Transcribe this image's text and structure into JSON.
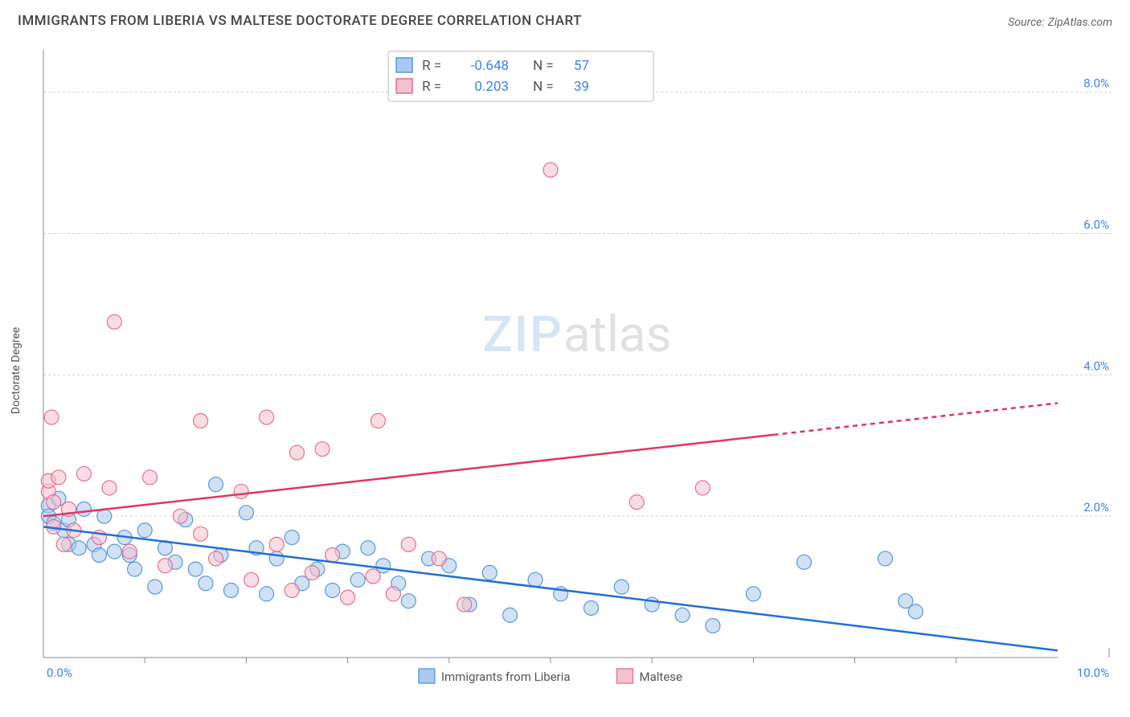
{
  "title": "IMMIGRANTS FROM LIBERIA VS MALTESE DOCTORATE DEGREE CORRELATION CHART",
  "source_label": "Source:",
  "source_value": "ZipAtlas.com",
  "ylabel": "Doctorate Degree",
  "watermark_a": "ZIP",
  "watermark_b": "atlas",
  "chart": {
    "type": "scatter",
    "xlim": [
      0,
      10
    ],
    "ylim": [
      0,
      8.6
    ],
    "ytick_step": 2,
    "ytick_labels": [
      "2.0%",
      "4.0%",
      "6.0%",
      "8.0%"
    ],
    "xticks_major": [
      0,
      10
    ],
    "xtick_labels": [
      "0.0%",
      "10.0%"
    ],
    "xticks_minor": [
      1,
      2,
      3,
      4,
      5,
      6,
      7,
      8,
      9
    ],
    "background_color": "#ffffff",
    "grid_color": "#d0d0d0",
    "axis_color": "#888888",
    "marker_radius": 9,
    "marker_opacity": 0.55,
    "line_width": 2.5,
    "series": [
      {
        "name": "Immigrants from Liberia",
        "color_fill": "#a9c9ef",
        "color_stroke": "#5a97dd",
        "line_color": "#1f6fd4",
        "R": "-0.648",
        "N": "57",
        "trend": {
          "x1": 0,
          "y1": 1.85,
          "x2": 10,
          "y2": 0.1,
          "extrap_from_x": null
        },
        "points": [
          [
            0.05,
            2.15
          ],
          [
            0.05,
            2.0
          ],
          [
            0.1,
            1.9
          ],
          [
            0.15,
            2.25
          ],
          [
            0.2,
            1.8
          ],
          [
            0.25,
            1.6
          ],
          [
            0.25,
            1.95
          ],
          [
            0.35,
            1.55
          ],
          [
            0.4,
            2.1
          ],
          [
            0.5,
            1.6
          ],
          [
            0.55,
            1.45
          ],
          [
            0.6,
            2.0
          ],
          [
            0.7,
            1.5
          ],
          [
            0.8,
            1.7
          ],
          [
            0.85,
            1.45
          ],
          [
            0.9,
            1.25
          ],
          [
            1.0,
            1.8
          ],
          [
            1.1,
            1.0
          ],
          [
            1.2,
            1.55
          ],
          [
            1.3,
            1.35
          ],
          [
            1.4,
            1.95
          ],
          [
            1.5,
            1.25
          ],
          [
            1.6,
            1.05
          ],
          [
            1.7,
            2.45
          ],
          [
            1.75,
            1.45
          ],
          [
            1.85,
            0.95
          ],
          [
            2.0,
            2.05
          ],
          [
            2.1,
            1.55
          ],
          [
            2.2,
            0.9
          ],
          [
            2.3,
            1.4
          ],
          [
            2.45,
            1.7
          ],
          [
            2.55,
            1.05
          ],
          [
            2.7,
            1.25
          ],
          [
            2.85,
            0.95
          ],
          [
            2.95,
            1.5
          ],
          [
            3.1,
            1.1
          ],
          [
            3.2,
            1.55
          ],
          [
            3.35,
            1.3
          ],
          [
            3.5,
            1.05
          ],
          [
            3.6,
            0.8
          ],
          [
            3.8,
            1.4
          ],
          [
            4.0,
            1.3
          ],
          [
            4.2,
            0.75
          ],
          [
            4.4,
            1.2
          ],
          [
            4.6,
            0.6
          ],
          [
            4.85,
            1.1
          ],
          [
            5.1,
            0.9
          ],
          [
            5.4,
            0.7
          ],
          [
            5.7,
            1.0
          ],
          [
            6.0,
            0.75
          ],
          [
            6.3,
            0.6
          ],
          [
            6.6,
            0.45
          ],
          [
            7.0,
            0.9
          ],
          [
            7.5,
            1.35
          ],
          [
            8.5,
            0.8
          ],
          [
            8.6,
            0.65
          ],
          [
            8.3,
            1.4
          ]
        ]
      },
      {
        "name": "Maltese",
        "color_fill": "#f5c1cd",
        "color_stroke": "#e66f8f",
        "line_color": "#e0365f",
        "R": "0.203",
        "N": "39",
        "trend": {
          "x1": 0,
          "y1": 2.0,
          "x2": 10,
          "y2": 3.6,
          "extrap_from_x": 7.2
        },
        "points": [
          [
            0.05,
            2.35
          ],
          [
            0.05,
            2.5
          ],
          [
            0.08,
            3.4
          ],
          [
            0.1,
            2.2
          ],
          [
            0.1,
            1.85
          ],
          [
            0.15,
            2.55
          ],
          [
            0.2,
            1.6
          ],
          [
            0.25,
            2.1
          ],
          [
            0.3,
            1.8
          ],
          [
            0.4,
            2.6
          ],
          [
            0.55,
            1.7
          ],
          [
            0.65,
            2.4
          ],
          [
            0.7,
            4.75
          ],
          [
            0.85,
            1.5
          ],
          [
            1.05,
            2.55
          ],
          [
            1.2,
            1.3
          ],
          [
            1.35,
            2.0
          ],
          [
            1.55,
            3.35
          ],
          [
            1.55,
            1.75
          ],
          [
            1.7,
            1.4
          ],
          [
            1.95,
            2.35
          ],
          [
            2.05,
            1.1
          ],
          [
            2.2,
            3.4
          ],
          [
            2.3,
            1.6
          ],
          [
            2.45,
            0.95
          ],
          [
            2.5,
            2.9
          ],
          [
            2.65,
            1.2
          ],
          [
            2.75,
            2.95
          ],
          [
            2.85,
            1.45
          ],
          [
            3.0,
            0.85
          ],
          [
            3.3,
            3.35
          ],
          [
            3.25,
            1.15
          ],
          [
            3.45,
            0.9
          ],
          [
            3.6,
            1.6
          ],
          [
            3.9,
            1.4
          ],
          [
            4.15,
            0.75
          ],
          [
            5.0,
            6.9
          ],
          [
            5.85,
            2.2
          ],
          [
            6.5,
            2.4
          ]
        ]
      }
    ]
  },
  "legend": {
    "r_label": "R =",
    "n_label": "N ="
  }
}
